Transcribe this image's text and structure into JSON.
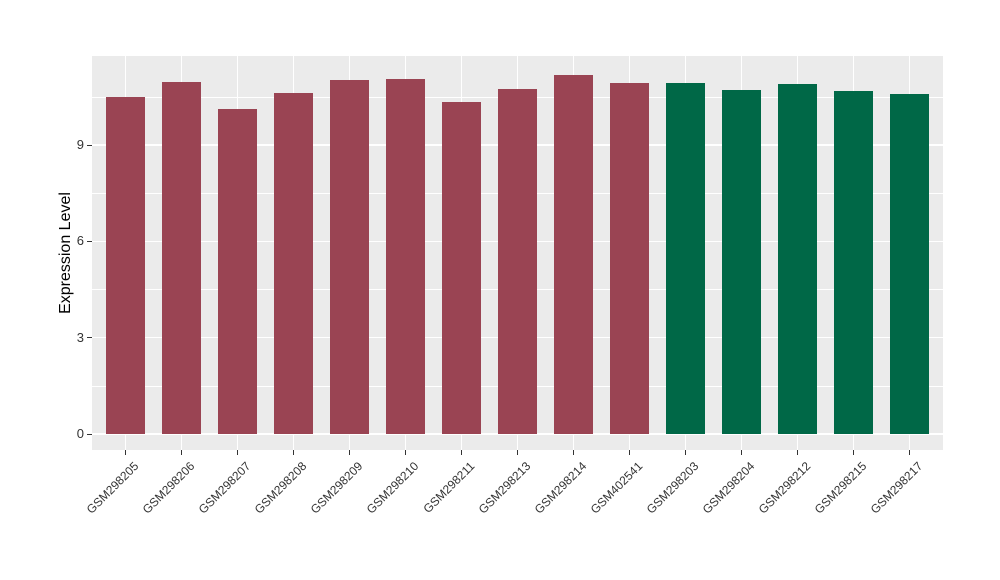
{
  "figure": {
    "background": "#FFFFFF",
    "panel_background": "#EBEBEB",
    "grid_color": "#FFFFFF",
    "axis_text_color": "#333333",
    "axis_title_color": "#000000",
    "tick_mark_color": "#333333"
  },
  "chart_data": {
    "type": "bar",
    "title": "",
    "xlabel": "",
    "ylabel": "Expression Level",
    "legend": "none",
    "grid": "on",
    "x_label_rotation_deg": 45,
    "bar_width_fraction": 0.7,
    "y_ticks": [
      0,
      3,
      6,
      9
    ],
    "y_minor_ticks": [
      1.5,
      4.5,
      7.5,
      10.5
    ],
    "ylim": [
      -0.56,
      11.74
    ],
    "categories": [
      "GSM298205",
      "GSM298206",
      "GSM298207",
      "GSM298208",
      "GSM298209",
      "GSM298210",
      "GSM298211",
      "GSM298213",
      "GSM298214",
      "GSM402541",
      "GSM298203",
      "GSM298204",
      "GSM298212",
      "GSM298215",
      "GSM298217"
    ],
    "values": [
      10.5,
      10.97,
      10.13,
      10.64,
      11.03,
      11.06,
      10.33,
      10.75,
      11.18,
      10.93,
      10.93,
      10.73,
      10.89,
      10.7,
      10.58
    ],
    "bar_colors": [
      "#9A4453",
      "#9A4453",
      "#9A4453",
      "#9A4453",
      "#9A4453",
      "#9A4453",
      "#9A4453",
      "#9A4453",
      "#9A4453",
      "#9A4453",
      "#006847",
      "#006847",
      "#006847",
      "#006847",
      "#006847"
    ],
    "group_colors": {
      "group_1": "#9A4453",
      "group_2": "#006847"
    },
    "group_membership": [
      "group_1",
      "group_1",
      "group_1",
      "group_1",
      "group_1",
      "group_1",
      "group_1",
      "group_1",
      "group_1",
      "group_1",
      "group_2",
      "group_2",
      "group_2",
      "group_2",
      "group_2"
    ]
  }
}
